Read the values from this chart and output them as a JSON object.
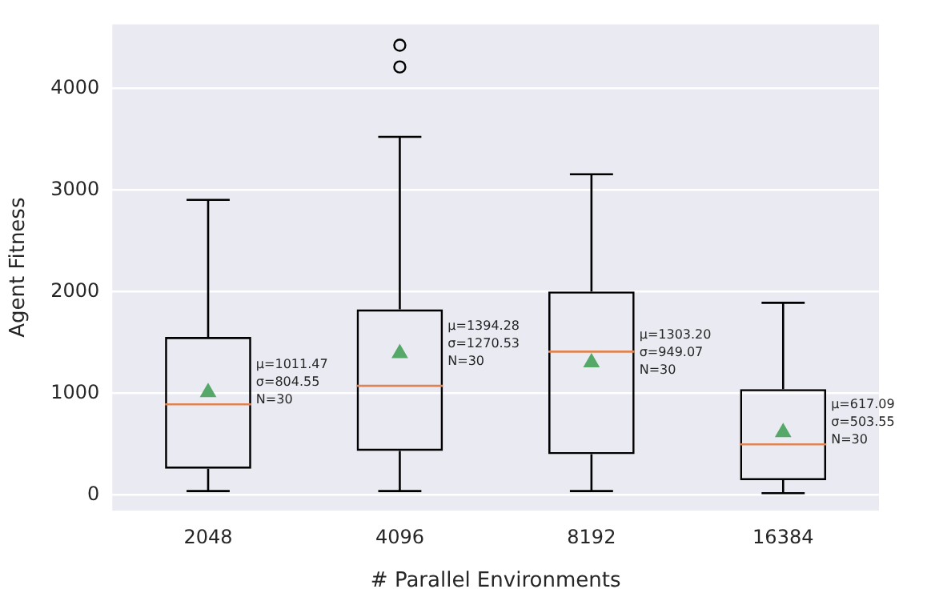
{
  "chart_data": {
    "type": "box",
    "xlabel": "# Parallel Environments",
    "ylabel": "Agent Fitness",
    "categories": [
      "2048",
      "4096",
      "8192",
      "16384"
    ],
    "boxes": [
      {
        "low": 40,
        "q1": 260,
        "median": 893,
        "q3": 1555,
        "high": 2904,
        "mean": 1011.47
      },
      {
        "low": 40,
        "q1": 435,
        "median": 1075,
        "q3": 1827,
        "high": 3523,
        "mean": 1394.28,
        "outliers": [
          4211,
          4424
        ]
      },
      {
        "low": 40,
        "q1": 403,
        "median": 1411,
        "q3": 2003,
        "high": 3155,
        "mean": 1303.2
      },
      {
        "low": 19,
        "q1": 147,
        "median": 499,
        "q3": 1043,
        "high": 1891,
        "mean": 617.09
      }
    ],
    "ylim": [
      -152,
      4630
    ],
    "yticks": [
      0,
      1000,
      2000,
      3000,
      4000
    ],
    "grid": "y",
    "annotations": [
      "μ=1011.47\nσ=804.55\nN=30",
      "μ=1394.28\nσ=1270.53\nN=30",
      "μ=1303.20\nσ=949.07\nN=30",
      "μ=617.09\nσ=503.55\nN=30"
    ]
  }
}
